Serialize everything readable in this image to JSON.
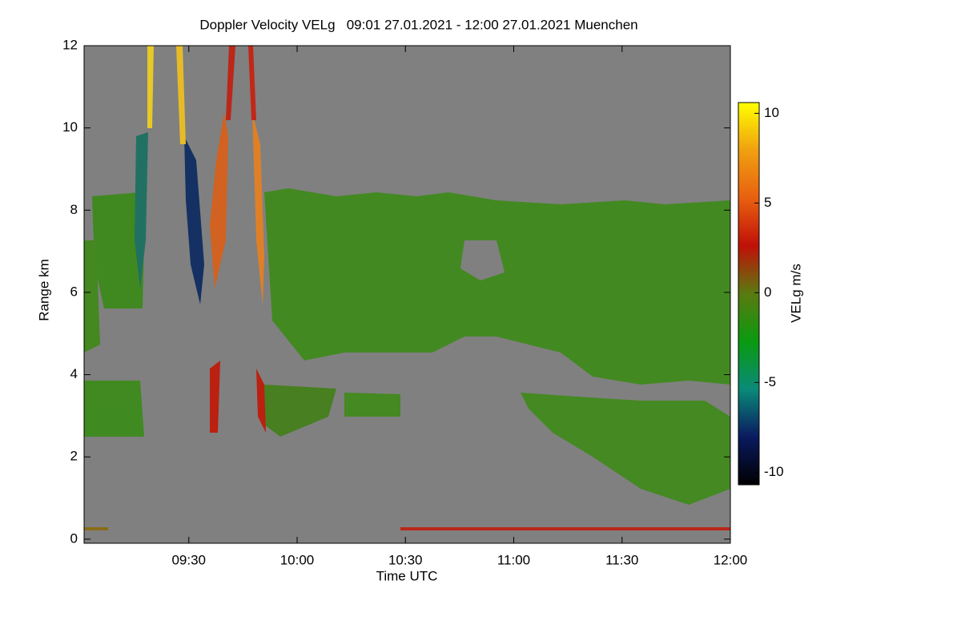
{
  "chart_data": {
    "type": "heatmap",
    "title": "Doppler Velocity VELg   09:01 27.01.2021 - 12:00 27.01.2021 Muenchen",
    "x_label": "Time UTC",
    "y_label": "Range km",
    "xlim": [
      541,
      720
    ],
    "xticks": [
      {
        "value": 570,
        "label": "09:30"
      },
      {
        "value": 600,
        "label": "10:00"
      },
      {
        "value": 630,
        "label": "10:30"
      },
      {
        "value": 660,
        "label": "11:00"
      },
      {
        "value": 690,
        "label": "11:30"
      },
      {
        "value": 720,
        "label": "12:00"
      }
    ],
    "ylim": [
      -0.1,
      12
    ],
    "yticks": [
      0,
      2,
      4,
      6,
      8,
      10,
      12
    ],
    "colorbar": {
      "label": "VELg m/s",
      "lim": [
        -10.7,
        10.6
      ],
      "ticks": [
        -10,
        -5,
        0,
        5,
        10
      ],
      "colormap": [
        "#000000",
        "#0a1a60",
        "#0a8a78",
        "#0a9a10",
        "#5a7a10",
        "#c01008",
        "#e86010",
        "#f0a010",
        "#ffff00"
      ]
    },
    "background": "#808080"
  }
}
